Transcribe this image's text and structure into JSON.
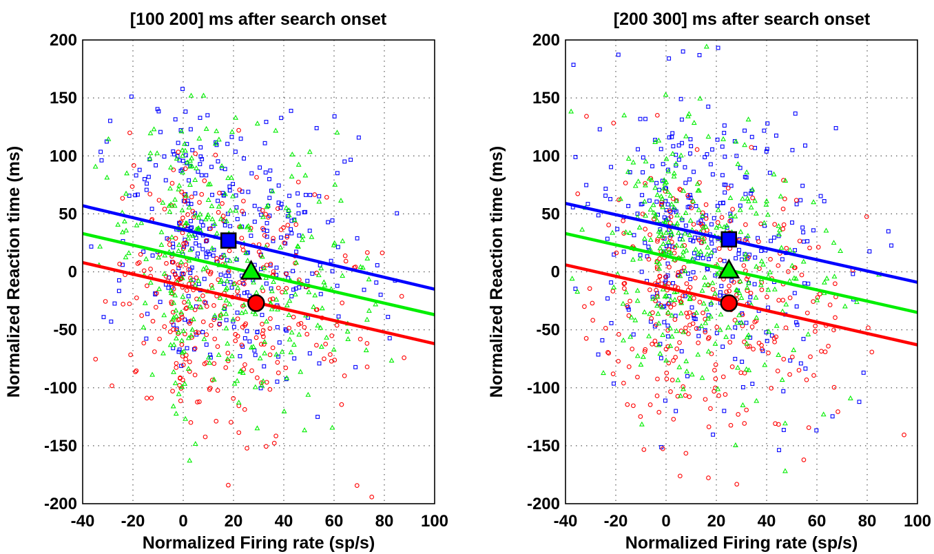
{
  "chart_data": [
    {
      "type": "scatter",
      "title": "[100  200] ms after search onset",
      "xlabel": "Normalized Firing rate (sp/s)",
      "ylabel": "Normalized Reaction time (ms)",
      "xlim": [
        -40,
        100
      ],
      "ylim": [
        -200,
        200
      ],
      "xticks": [
        -40,
        -20,
        0,
        20,
        40,
        60,
        80,
        100
      ],
      "yticks": [
        -200,
        -150,
        -100,
        -50,
        0,
        50,
        100,
        150,
        200
      ],
      "grid": true,
      "series": [
        {
          "color": "#0000ff",
          "marker": "square",
          "mean_point": [
            18,
            27
          ],
          "fit_line": [
            [
              -40,
              57
            ],
            [
              100,
              -15
            ]
          ]
        },
        {
          "color": "#00ee00",
          "marker": "triangle",
          "mean_point": [
            27,
            0
          ],
          "fit_line": [
            [
              -40,
              33
            ],
            [
              100,
              -37
            ]
          ]
        },
        {
          "color": "#ff0000",
          "marker": "circle",
          "mean_point": [
            29,
            -27
          ],
          "fit_line": [
            [
              -40,
              8
            ],
            [
              100,
              -62
            ]
          ]
        }
      ]
    },
    {
      "type": "scatter",
      "title": "[200  300] ms after search onset",
      "xlabel": "Normalized Firing rate (sp/s)",
      "ylabel": "Normalized Reaction time (ms)",
      "xlim": [
        -40,
        100
      ],
      "ylim": [
        -200,
        200
      ],
      "xticks": [
        -40,
        -20,
        0,
        20,
        40,
        60,
        80,
        100
      ],
      "yticks": [
        -200,
        -150,
        -100,
        -50,
        0,
        50,
        100,
        150,
        200
      ],
      "grid": true,
      "series": [
        {
          "color": "#0000ff",
          "marker": "square",
          "mean_point": [
            25,
            28
          ],
          "fit_line": [
            [
              -40,
              59
            ],
            [
              100,
              -9
            ]
          ]
        },
        {
          "color": "#00ee00",
          "marker": "triangle",
          "mean_point": [
            25,
            1
          ],
          "fit_line": [
            [
              -40,
              33
            ],
            [
              100,
              -35
            ]
          ]
        },
        {
          "color": "#ff0000",
          "marker": "circle",
          "mean_point": [
            25,
            -27
          ],
          "fit_line": [
            [
              -40,
              6
            ],
            [
              100,
              -63
            ]
          ]
        }
      ]
    }
  ]
}
